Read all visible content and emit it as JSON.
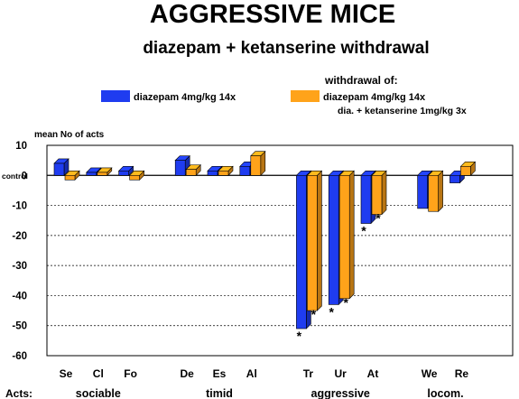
{
  "chart_data": {
    "type": "bar",
    "title": "AGGRESSIVE MICE",
    "subtitle": "diazepam + ketanserine withdrawal",
    "legend_heading": "withdrawal of:",
    "ylabel": "mean No of acts",
    "ylim": [
      -60,
      10
    ],
    "yticks": [
      10,
      0,
      -10,
      -20,
      -30,
      -40,
      -50,
      -60
    ],
    "ytick_labels": [
      "10",
      "0",
      "-10",
      "-20",
      "-30",
      "-40",
      "-50",
      "-60"
    ],
    "control_label": "control",
    "grid": true,
    "legend_position": "top",
    "acts_label": "Acts:",
    "categories": [
      "Se",
      "Cl",
      "Fo",
      "De",
      "Es",
      "Al",
      "Tr",
      "Ur",
      "At",
      "We",
      "Re"
    ],
    "category_groups": [
      "sociable",
      "sociable",
      "sociable",
      "timid",
      "timid",
      "timid",
      "aggressive",
      "aggressive",
      "aggressive",
      "locom.",
      "locom."
    ],
    "groups": [
      "sociable",
      "timid",
      "aggressive",
      "locom."
    ],
    "series": [
      {
        "name": "diazepam 4mg/kg 14x",
        "color": "#1f3cf0",
        "values": [
          4,
          1,
          1.5,
          5,
          1.5,
          3,
          -51,
          -43,
          -16,
          -11,
          -2.5
        ],
        "markers": [
          "",
          "",
          "",
          "",
          "",
          "",
          "*",
          "*",
          "*",
          "",
          ""
        ]
      },
      {
        "name": "diazepam 4mg/kg 14x",
        "name_line2": "dia. + ketanserine 1mg/kg 3x",
        "color": "#ffa31a",
        "values": [
          -1.5,
          1,
          -1.5,
          2,
          1.5,
          6.5,
          -45,
          -41,
          -13,
          -12,
          3
        ],
        "markers": [
          "",
          "",
          "",
          "",
          "",
          "",
          "*",
          "*",
          "*",
          "",
          ""
        ]
      }
    ]
  }
}
